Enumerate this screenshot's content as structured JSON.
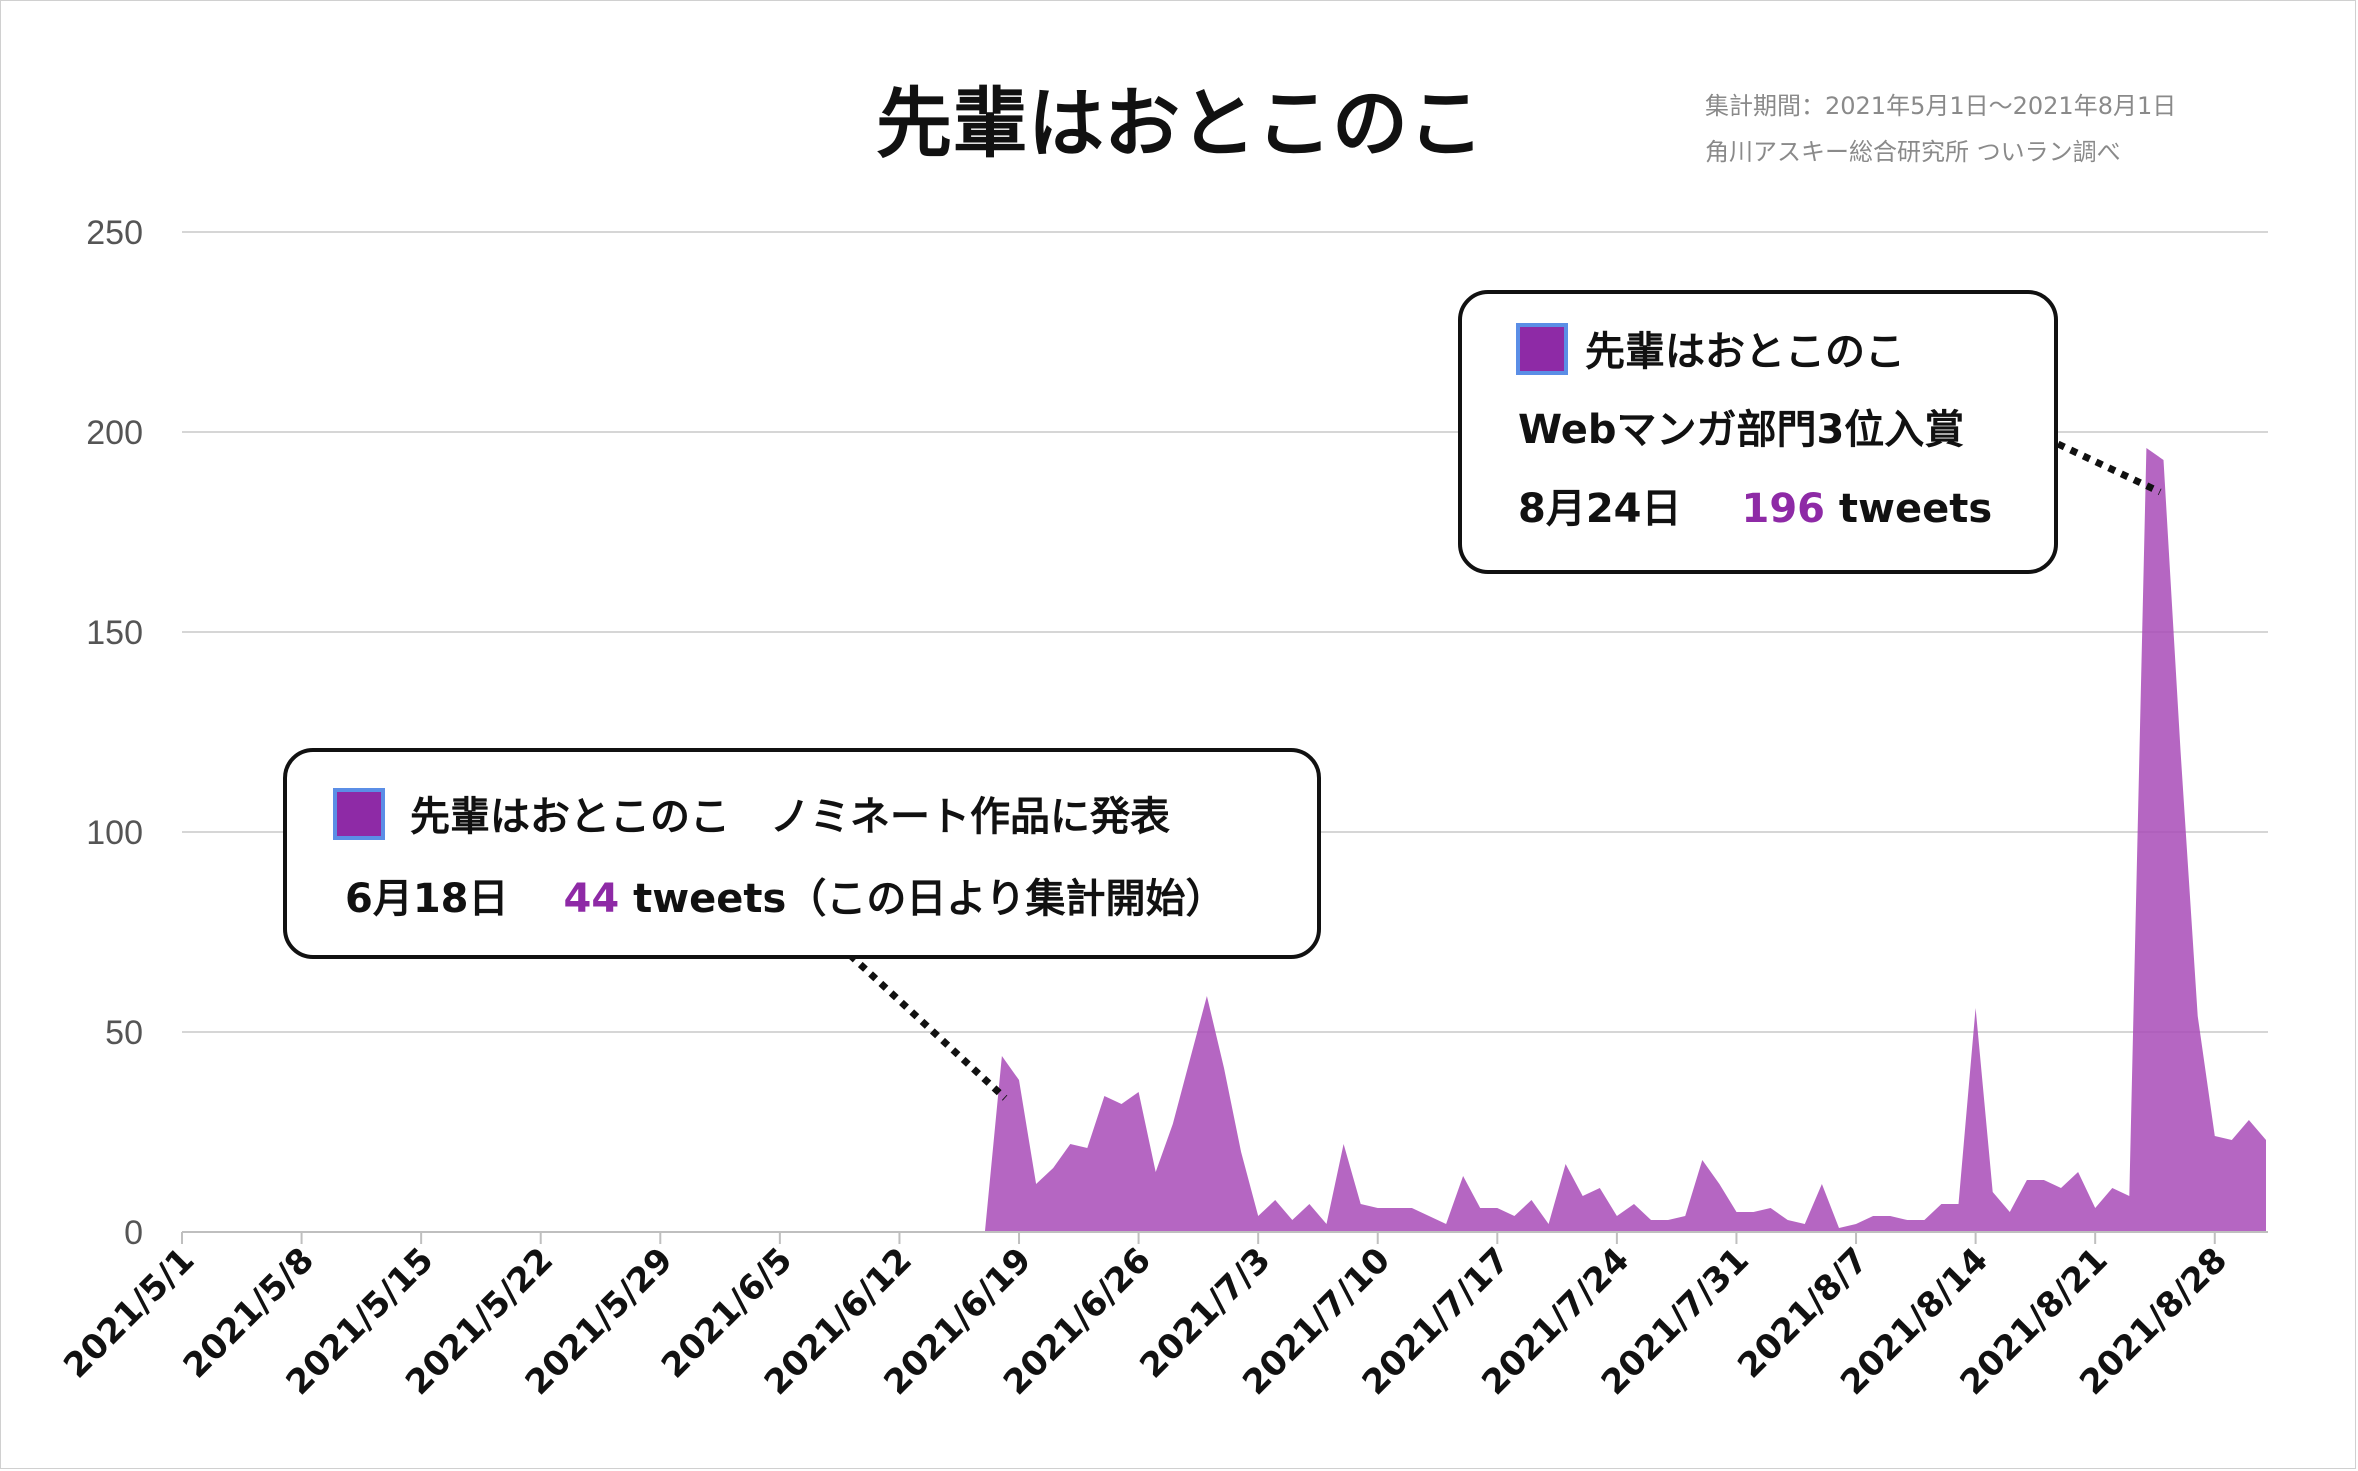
{
  "chart_data": {
    "type": "area",
    "title": "先輩はおとこのこ",
    "notes": [
      "集計期間：2021年5月1日～2021年8月1日",
      "角川アスキー総合研究所 ついラン調べ"
    ],
    "series_color": "#a84bb7",
    "ylim": [
      0,
      250
    ],
    "yticks": [
      0,
      50,
      100,
      150,
      200,
      250
    ],
    "grid": true,
    "x_range": [
      "2021/5/1",
      "2021/8/31"
    ],
    "xtick_labels": [
      "2021/5/1",
      "2021/5/8",
      "2021/5/15",
      "2021/5/22",
      "2021/5/29",
      "2021/6/5",
      "2021/6/12",
      "2021/6/19",
      "2021/6/26",
      "2021/7/3",
      "2021/7/10",
      "2021/7/17",
      "2021/7/24",
      "2021/7/31",
      "2021/8/7",
      "2021/8/14",
      "2021/8/21",
      "2021/8/28"
    ],
    "series": [
      {
        "dates": [
          "2021/6/17",
          "2021/6/18",
          "2021/6/19",
          "2021/6/20",
          "2021/6/21",
          "2021/6/22",
          "2021/6/23",
          "2021/6/24",
          "2021/6/25",
          "2021/6/26",
          "2021/6/27",
          "2021/6/28",
          "2021/6/29",
          "2021/6/30",
          "2021/7/1",
          "2021/7/2",
          "2021/7/3",
          "2021/7/4",
          "2021/7/5",
          "2021/7/6",
          "2021/7/7",
          "2021/7/8",
          "2021/7/9",
          "2021/7/10",
          "2021/7/11",
          "2021/7/12",
          "2021/7/13",
          "2021/7/14",
          "2021/7/15",
          "2021/7/16",
          "2021/7/17",
          "2021/7/18",
          "2021/7/19",
          "2021/7/20",
          "2021/7/21",
          "2021/7/22",
          "2021/7/23",
          "2021/7/24",
          "2021/7/25",
          "2021/7/26",
          "2021/7/27",
          "2021/7/28",
          "2021/7/29",
          "2021/7/30",
          "2021/7/31",
          "2021/8/1",
          "2021/8/2",
          "2021/8/3",
          "2021/8/4",
          "2021/8/5",
          "2021/8/6",
          "2021/8/7",
          "2021/8/8",
          "2021/8/9",
          "2021/8/10",
          "2021/8/11",
          "2021/8/12",
          "2021/8/13",
          "2021/8/14",
          "2021/8/15",
          "2021/8/16",
          "2021/8/17",
          "2021/8/18",
          "2021/8/19",
          "2021/8/20",
          "2021/8/21",
          "2021/8/22",
          "2021/8/23",
          "2021/8/24",
          "2021/8/25",
          "2021/8/26",
          "2021/8/27",
          "2021/8/28",
          "2021/8/29",
          "2021/8/30",
          "2021/8/31"
        ],
        "values": [
          0,
          44,
          38,
          12,
          16,
          22,
          21,
          34,
          32,
          35,
          15,
          27,
          43,
          59,
          41,
          20,
          4,
          8,
          3,
          7,
          2,
          22,
          7,
          6,
          6,
          6,
          4,
          2,
          14,
          6,
          6,
          4,
          8,
          2,
          17,
          9,
          11,
          4,
          7,
          3,
          3,
          4,
          18,
          12,
          5,
          5,
          6,
          3,
          2,
          12,
          1,
          2,
          4,
          4,
          3,
          3,
          7,
          7,
          56,
          10,
          5,
          13,
          13,
          11,
          15,
          6,
          11,
          9,
          196,
          193,
          120,
          54,
          24,
          23,
          28,
          23
        ]
      }
    ],
    "annotations": [
      {
        "line1_title": "先輩はおとこのこ",
        "line1_suffix": "　ノミネート作品に発表",
        "line2_date": "6月18日",
        "line2_value": "44",
        "line2_suffix": " tweets（この日より集計開始）"
      },
      {
        "line1_title": "先輩はおとこのこ",
        "line1_suffix": "Webマンガ部門3位入賞",
        "line2_date": "8月24日",
        "line2_value": "196",
        "line2_suffix": " tweets"
      }
    ]
  }
}
